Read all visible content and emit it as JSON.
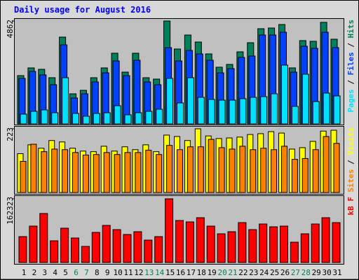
{
  "chart_data": {
    "type": "bar",
    "title": "Daily usage for August 2016",
    "legend_separator": " / ",
    "categories": [
      "1",
      "2",
      "3",
      "4",
      "5",
      "6",
      "7",
      "8",
      "9",
      "10",
      "11",
      "12",
      "13",
      "14",
      "15",
      "16",
      "17",
      "18",
      "19",
      "20",
      "21",
      "22",
      "23",
      "24",
      "25",
      "26",
      "27",
      "28",
      "29",
      "30",
      "31"
    ],
    "category_colors": [
      "#000000",
      "#000000",
      "#000000",
      "#000000",
      "#000000",
      "#00805c",
      "#00805c",
      "#000000",
      "#000000",
      "#000000",
      "#000000",
      "#000000",
      "#00805c",
      "#00805c",
      "#000000",
      "#000000",
      "#000000",
      "#000000",
      "#000000",
      "#00805c",
      "#00805c",
      "#000000",
      "#000000",
      "#000000",
      "#000000",
      "#000000",
      "#00805c",
      "#00805c",
      "#000000",
      "#000000",
      "#000000"
    ],
    "panels": [
      {
        "ylim": [
          0,
          4862
        ],
        "yticks": [
          4862
        ],
        "series": [
          {
            "name": "Hits",
            "color": "#00805c",
            "values": [
              2282,
              2646,
              2580,
              2183,
              4101,
              1422,
              1587,
              2183,
              2646,
              3340,
              2447,
              3340,
              2183,
              2117,
              4862,
              3539,
              4200,
              3869,
              3307,
              2679,
              2811,
              3406,
              3836,
              4498,
              4531,
              4696,
              2646,
              3936,
              3902,
              4800,
              4002
            ]
          },
          {
            "name": "Files",
            "color": "#0040ff",
            "values": [
              2150,
              2480,
              2315,
              1852,
              3737,
              1224,
              1422,
              1984,
              2414,
              2976,
              2282,
              3009,
              1984,
              1852,
              3605,
              2976,
              3473,
              3307,
              3009,
              2414,
              2613,
              3142,
              3208,
              4200,
              4200,
              4332,
              2447,
              3671,
              3572,
              4332,
              3605
            ]
          },
          {
            "name": "Pages",
            "color": "#00e0ff",
            "values": [
              463,
              595,
              661,
              529,
              2183,
              496,
              364,
              496,
              529,
              860,
              430,
              529,
              595,
              694,
              2150,
              992,
              2183,
              1257,
              1157,
              1124,
              1124,
              1191,
              1257,
              1290,
              1422,
              2778,
              827,
              2348,
              1058,
              1455,
              1323
            ]
          }
        ]
      },
      {
        "ylim": [
          0,
          223
        ],
        "yticks": [
          223
        ],
        "series": [
          {
            "name": "Visits",
            "color": "#ffff00",
            "values": [
              136,
              167,
              155,
              182,
              177,
              155,
              145,
              143,
              162,
              145,
              160,
              150,
              167,
              143,
              201,
              196,
              182,
              223,
              198,
              189,
              191,
              194,
              203,
              206,
              213,
              208,
              152,
              157,
              179,
              215,
              218
            ]
          },
          {
            "name": "Sites",
            "color": "#ff8000",
            "values": [
              109,
              169,
              143,
              152,
              150,
              140,
              131,
              133,
              140,
              133,
              140,
              140,
              148,
              133,
              165,
              150,
              160,
              160,
              186,
              157,
              152,
              162,
              150,
              155,
              150,
              162,
              116,
              119,
              150,
              196,
              172
            ]
          }
        ]
      },
      {
        "ylim": [
          0,
          162323
        ],
        "yticks": [
          162323
        ],
        "series": [
          {
            "name": "kB F",
            "color": "#ff0000",
            "values": [
              66008,
              92768,
              124880,
              55304,
              87416,
              62440,
              41032,
              76712,
              94552,
              83848,
              71360,
              78496,
              57088,
              66008,
              162323,
              107040,
              103472,
              114176,
              92768,
              73144,
              78496,
              101688,
              83848,
              98120,
              90984,
              92768,
              51736,
              73144,
              98120,
              114176,
              101688
            ]
          }
        ]
      }
    ]
  }
}
